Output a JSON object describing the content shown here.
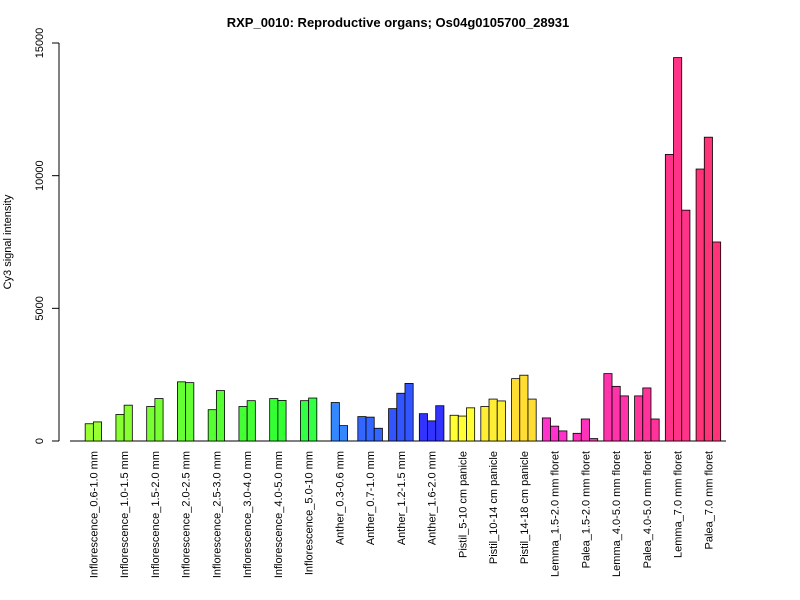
{
  "chart_data": {
    "type": "bar",
    "title": "RXP_0010: Reproductive organs; Os04g0105700_28931",
    "xlabel": "",
    "ylabel": "Cy3 signal intensity",
    "ylim": [
      0,
      15000
    ],
    "yticks": [
      0,
      5000,
      10000,
      15000
    ],
    "grid": false,
    "legend": "none",
    "groups": [
      {
        "label": "Inflorescence_0.6-1.0 mm",
        "color": "#99ff33",
        "values": [
          650,
          720
        ]
      },
      {
        "label": "Inflorescence_1.0-1.5 mm",
        "color": "#88ff33",
        "values": [
          1000,
          1350
        ]
      },
      {
        "label": "Inflorescence_1.5-2.0 mm",
        "color": "#77ff33",
        "values": [
          1300,
          1600
        ]
      },
      {
        "label": "Inflorescence_2.0-2.5 mm",
        "color": "#66ff33",
        "values": [
          2230,
          2200
        ]
      },
      {
        "label": "Inflorescence_2.5-3.0 mm",
        "color": "#55ff33",
        "values": [
          1180,
          1900
        ]
      },
      {
        "label": "Inflorescence_3.0-4.0 mm",
        "color": "#44ff33",
        "values": [
          1300,
          1520
        ]
      },
      {
        "label": "Inflorescence_4.0-5.0 mm",
        "color": "#33ff33",
        "values": [
          1600,
          1530
        ]
      },
      {
        "label": "Inflorescence_5.0-10 mm",
        "color": "#33ff44",
        "values": [
          1520,
          1620
        ]
      },
      {
        "label": "Anther_0.3-0.6 mm",
        "color": "#3388ff",
        "values": [
          1450,
          580
        ]
      },
      {
        "label": "Anther_0.7-1.0 mm",
        "color": "#3366ff",
        "values": [
          920,
          900,
          480
        ]
      },
      {
        "label": "Anther_1.2-1.5 mm",
        "color": "#3355ff",
        "values": [
          1220,
          1800,
          2170
        ]
      },
      {
        "label": "Anther_1.6-2.0 mm",
        "color": "#3333ff",
        "values": [
          1030,
          760,
          1330
        ]
      },
      {
        "label": "Pistil_5-10 cm panicle",
        "color": "#ffff33",
        "values": [
          970,
          940,
          1250
        ]
      },
      {
        "label": "Pistil_10-14 cm panicle",
        "color": "#ffee33",
        "values": [
          1300,
          1580,
          1510
        ]
      },
      {
        "label": "Pistil_14-18 cm panicle",
        "color": "#ffdd33",
        "values": [
          2350,
          2480,
          1580
        ]
      },
      {
        "label": "Lemma_1.5-2.0 mm floret",
        "color": "#ff33cc",
        "values": [
          870,
          560,
          380
        ]
      },
      {
        "label": "Palea_1.5-2.0 mm floret",
        "color": "#ff33bb",
        "values": [
          290,
          830,
          90
        ]
      },
      {
        "label": "Lemma_4.0-5.0 mm floret",
        "color": "#ff33aa",
        "values": [
          2540,
          2060,
          1700
        ]
      },
      {
        "label": "Palea_4.0-5.0 mm floret",
        "color": "#ff3399",
        "values": [
          1700,
          2000,
          830
        ]
      },
      {
        "label": "Lemma_7.0 mm floret",
        "color": "#ff3388",
        "values": [
          10800,
          14450,
          8700
        ]
      },
      {
        "label": "Palea_7.0 mm floret",
        "color": "#ff3377",
        "values": [
          10250,
          11450,
          7500
        ]
      }
    ]
  }
}
